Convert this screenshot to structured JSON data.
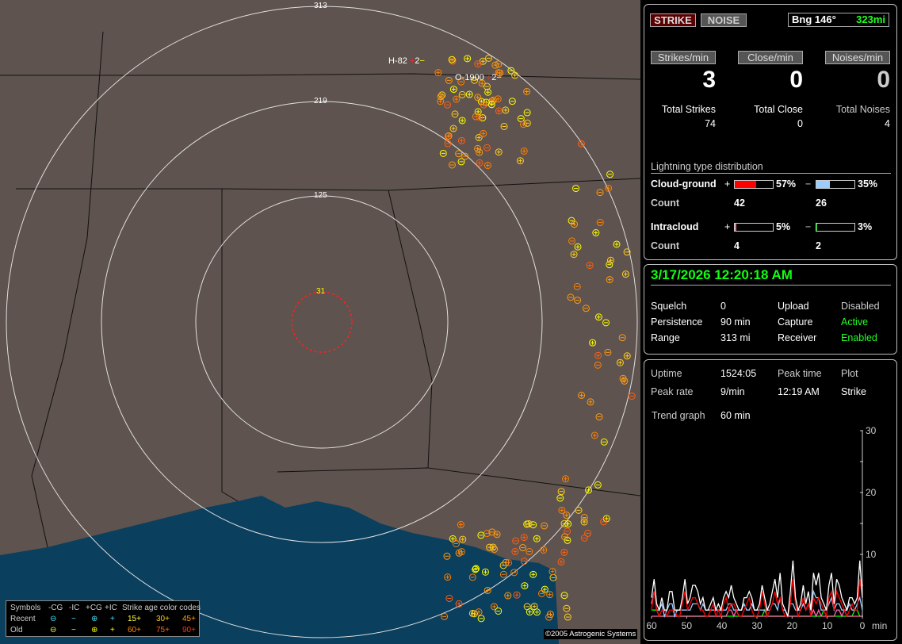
{
  "map": {
    "range_labels": [
      "31",
      "125",
      "219",
      "313"
    ],
    "station_labels": [
      "H-82",
      "O-1900"
    ],
    "station_suffix": "2",
    "copyright": "©2005 Astrogenic Systems",
    "colors": {
      "land": "#5e534e",
      "water": "#0b3f5e",
      "rings": "#e0e0e0",
      "close_ring": "#ff2020"
    }
  },
  "legend": {
    "header": [
      "Symbols",
      "-CG",
      "-IC",
      "+CG",
      "+IC"
    ],
    "age_title": "Strike age color codes",
    "rows": [
      {
        "label": "Recent",
        "symbols": [
          "⊖",
          "−",
          "⊕",
          "+"
        ],
        "color": "#40e0ff",
        "ages": [
          "15+",
          "30+",
          "45+"
        ],
        "age_colors": [
          "#ffff40",
          "#ffc020",
          "#ff9a10"
        ]
      },
      {
        "label": "Old",
        "symbols": [
          "⊖",
          "−",
          "⊕",
          "+"
        ],
        "color": "#ffff00",
        "ages": [
          "60+",
          "75+",
          "90+"
        ],
        "age_colors": [
          "#ff8000",
          "#ff6010",
          "#ff3010"
        ]
      }
    ]
  },
  "header": {
    "strike_tab": "STRIKE",
    "noise_tab": "NOISE",
    "bearing": "Bng 146°",
    "distance": "323mi"
  },
  "rates": [
    {
      "label": "Strikes/min",
      "value": "3",
      "total_label": "Total Strikes",
      "total": "74"
    },
    {
      "label": "Close/min",
      "value": "0",
      "total_label": "Total Close",
      "total": "0"
    },
    {
      "label": "Noises/min",
      "value": "0",
      "total_label": "Total Noises",
      "total": "4"
    }
  ],
  "distribution": {
    "title": "Lightning type distribution",
    "count_label": "Count",
    "cg": {
      "label": "Cloud-ground",
      "pos_pct": 57,
      "pos_text": "57%",
      "neg_pct": 35,
      "neg_text": "35%",
      "pos_count": "42",
      "neg_count": "26",
      "pos_color": "#ff0000",
      "neg_color": "#99ccff"
    },
    "ic": {
      "label": "Intracloud",
      "pos_pct": 5,
      "pos_text": "5%",
      "neg_pct": 3,
      "neg_text": "3%",
      "pos_count": "4",
      "neg_count": "2",
      "pos_color": "#ff66aa",
      "neg_color": "#00cc00"
    },
    "plus": "+",
    "minus": "−"
  },
  "status": {
    "datetime": "3/17/2026 12:20:18 AM",
    "rows": [
      {
        "k": "Squelch",
        "v": "0",
        "k2": "Upload",
        "v2": "Disabled"
      },
      {
        "k": "Persistence",
        "v": "90 min",
        "k2": "Capture",
        "v2": "Active"
      },
      {
        "k": "Range",
        "v": "313 mi",
        "k2": "Receiver",
        "v2": "Enabled"
      }
    ]
  },
  "stats": {
    "uptime_label": "Uptime",
    "uptime": "1524:05",
    "peak_time_label": "Peak time",
    "plot_label": "Plot",
    "peak_rate_label": "Peak rate",
    "peak_rate": "9/min",
    "peak_time": "12:19 AM",
    "plot": "Strike",
    "trend_label": "Trend graph",
    "trend": "60 min"
  },
  "chart_data": {
    "type": "line",
    "xlabel": "min",
    "x_ticks": [
      "60",
      "50",
      "40",
      "30",
      "20",
      "10",
      "0"
    ],
    "y_ticks": [
      "10",
      "20",
      "30"
    ],
    "xlim": [
      60,
      0
    ],
    "ylim": [
      0,
      30
    ],
    "series": [
      {
        "color": "#ffffff",
        "values": [
          3,
          6,
          2,
          1,
          3,
          1,
          1,
          4,
          4,
          1,
          1,
          1,
          3,
          6,
          2,
          3,
          5,
          5,
          4,
          2,
          3,
          1,
          1,
          2,
          3,
          1,
          2,
          1,
          3,
          4,
          3,
          5,
          3,
          2,
          1,
          1,
          3,
          3,
          4,
          3,
          1,
          1,
          2,
          5,
          3,
          1,
          2,
          4,
          6,
          3,
          7,
          2,
          1,
          0,
          4,
          9,
          3,
          1,
          2,
          5,
          2,
          4,
          1,
          7,
          5,
          7,
          3,
          2,
          1,
          5,
          7,
          2,
          6,
          5,
          3,
          2,
          1,
          3,
          3,
          2,
          3,
          9,
          3
        ]
      },
      {
        "color": "#ff0000",
        "values": [
          1,
          4,
          1,
          0,
          1,
          1,
          0,
          1,
          1,
          1,
          0,
          0,
          2,
          4,
          1,
          2,
          3,
          3,
          2,
          1,
          1,
          0,
          0,
          1,
          2,
          0,
          1,
          0,
          2,
          3,
          1,
          2,
          2,
          1,
          0,
          0,
          1,
          2,
          3,
          1,
          0,
          0,
          1,
          4,
          2,
          0,
          1,
          2,
          4,
          2,
          3,
          1,
          0,
          0,
          2,
          6,
          2,
          0,
          1,
          3,
          1,
          2,
          0,
          3,
          2,
          3,
          2,
          1,
          0,
          3,
          4,
          1,
          4,
          3,
          2,
          1,
          0,
          1,
          2,
          1,
          1,
          6,
          3
        ]
      },
      {
        "color": "#99ccff",
        "values": [
          2,
          4,
          1,
          1,
          2,
          0,
          1,
          2,
          2,
          0,
          1,
          1,
          1,
          1,
          1,
          1,
          2,
          2,
          2,
          1,
          2,
          1,
          1,
          1,
          1,
          1,
          1,
          1,
          1,
          1,
          2,
          2,
          1,
          1,
          1,
          1,
          2,
          1,
          1,
          2,
          1,
          1,
          1,
          1,
          1,
          1,
          1,
          2,
          2,
          1,
          3,
          1,
          1,
          0,
          2,
          2,
          1,
          1,
          1,
          2,
          1,
          2,
          1,
          4,
          3,
          3,
          1,
          1,
          1,
          2,
          3,
          1,
          2,
          2,
          1,
          1,
          1,
          2,
          1,
          1,
          2,
          3,
          1
        ]
      },
      {
        "color": "#ff66aa",
        "values": [
          0,
          0,
          0,
          0,
          0,
          0,
          0,
          0,
          0,
          0,
          0,
          0,
          0,
          0,
          0,
          0,
          0,
          0,
          0,
          0,
          0,
          0,
          0,
          0,
          0,
          0,
          0,
          0,
          0,
          0,
          1,
          1,
          0,
          1,
          0,
          0,
          0,
          0,
          0,
          0,
          0,
          0,
          0,
          0,
          0,
          0,
          0,
          0,
          0,
          0,
          0,
          0,
          0,
          0,
          0,
          0,
          0,
          0,
          0,
          0,
          0,
          0,
          0,
          1,
          0,
          1,
          0,
          0,
          0,
          0,
          0,
          0,
          1,
          1,
          0,
          1,
          0,
          0,
          0,
          0,
          0,
          0,
          0
        ]
      },
      {
        "color": "#00ff00",
        "values": [
          1,
          1,
          1,
          0,
          0,
          0,
          0,
          0,
          0,
          0,
          0,
          0,
          0,
          0,
          0,
          0,
          0,
          0,
          0,
          0,
          0,
          0,
          0,
          0,
          0,
          0,
          0,
          0,
          0,
          0,
          0,
          0,
          0,
          0,
          0,
          0,
          0,
          0,
          0,
          0,
          0,
          0,
          0,
          0,
          1,
          0,
          0,
          0,
          0,
          0,
          0,
          0,
          0,
          0,
          0,
          0,
          0,
          0,
          0,
          0,
          0,
          0,
          0,
          0,
          0,
          0,
          0,
          1,
          0,
          0,
          0,
          0,
          0,
          0,
          0,
          0,
          0,
          0,
          0,
          1,
          1,
          0,
          0
        ]
      }
    ]
  }
}
